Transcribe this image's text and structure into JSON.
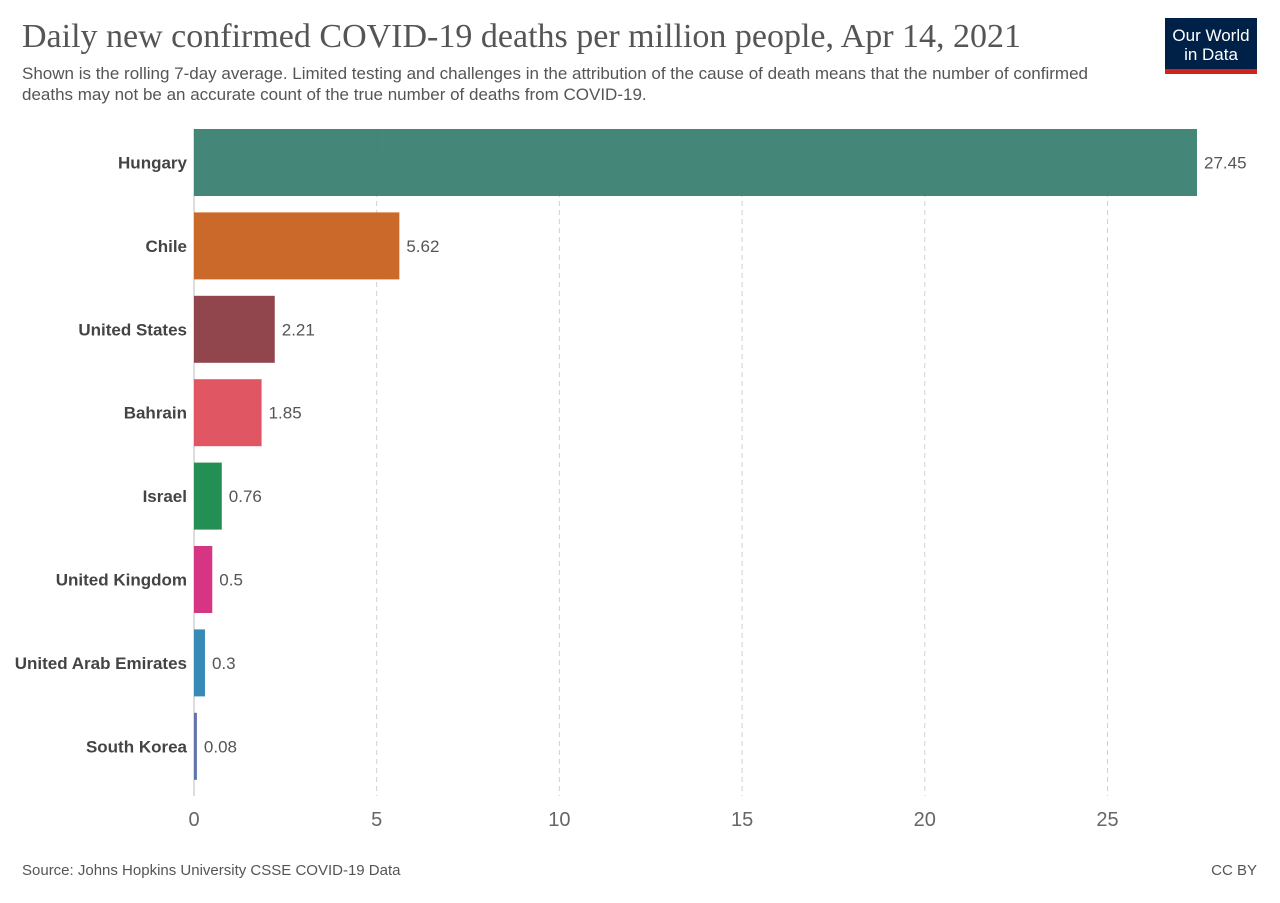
{
  "header": {
    "title": "Daily new confirmed COVID-19 deaths per million people, Apr 14, 2021",
    "subtitle": "Shown is the rolling 7-day average. Limited testing and challenges in the attribution of the cause of death means that the number of confirmed deaths may not be an accurate count of the true number of deaths from COVID-19."
  },
  "logo": {
    "line1": "Our World",
    "line2": "in Data",
    "bg_color": "#002147",
    "accent_color": "#ce261e"
  },
  "footer": {
    "source": "Source: Johns Hopkins University CSSE COVID-19 Data",
    "license": "CC BY"
  },
  "chart_data": {
    "type": "bar",
    "orientation": "horizontal",
    "categories": [
      "Hungary",
      "Chile",
      "United States",
      "Bahrain",
      "Israel",
      "United Kingdom",
      "United Arab Emirates",
      "South Korea"
    ],
    "values": [
      27.45,
      5.62,
      2.21,
      1.85,
      0.76,
      0.5,
      0.3,
      0.08
    ],
    "value_labels": [
      "27.45",
      "5.62",
      "2.21",
      "1.85",
      "0.76",
      "0.5",
      "0.3",
      "0.08"
    ],
    "colors": [
      "#3a8070",
      "#c8611f",
      "#8b3b42",
      "#df4d5b",
      "#18894b",
      "#d42a7d",
      "#2c84b2",
      "#5a6ea6"
    ],
    "xticks": [
      0,
      5,
      10,
      15,
      20,
      25
    ],
    "xlim": [
      0,
      27.45
    ],
    "grid": true,
    "legend": "none"
  }
}
